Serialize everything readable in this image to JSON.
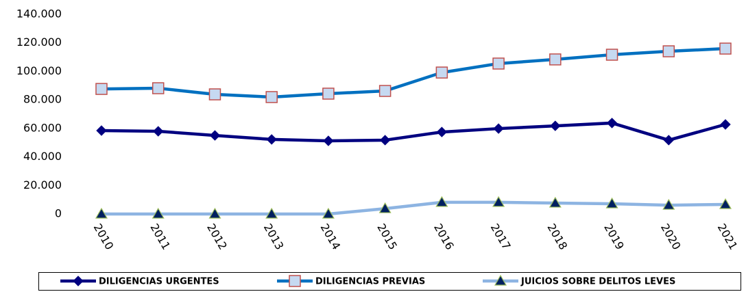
{
  "chart_data": {
    "type": "line",
    "categories": [
      "2010",
      "2011",
      "2012",
      "2013",
      "2014",
      "2015",
      "2016",
      "2017",
      "2018",
      "2019",
      "2020",
      "2021"
    ],
    "series": [
      {
        "name": "DILIGENCIAS URGENTES",
        "color": "#000080",
        "marker": "diamond",
        "marker_fill": "#000080",
        "marker_edge": "#000080",
        "values": [
          58500,
          58000,
          55100,
          52300,
          51300,
          51800,
          57500,
          59900,
          61800,
          63800,
          51800,
          62800
        ]
      },
      {
        "name": "DILIGENCIAS PREVIAS",
        "color": "#0070c0",
        "marker": "square",
        "marker_fill": "#c6d9f1",
        "marker_edge": "#c0504d",
        "values": [
          87700,
          88200,
          83900,
          82000,
          84400,
          86300,
          99200,
          105500,
          108400,
          111700,
          114100,
          116000
        ]
      },
      {
        "name": "JUICIOS SOBRE DELITOS LEVES",
        "color": "#8db4e2",
        "marker": "triangle",
        "marker_fill": "#002060",
        "marker_edge": "#9bbb59",
        "values": [
          0,
          0,
          0,
          0,
          0,
          3800,
          8200,
          8200,
          7700,
          7200,
          6200,
          6700
        ]
      }
    ],
    "ylim": [
      0,
      140000
    ],
    "yticks": [
      0,
      {
        "value": 20000,
        "label": "20.000"
      },
      {
        "value": 40000,
        "label": "40.000"
      },
      {
        "value": 60000,
        "label": "60.000"
      },
      {
        "value": 80000,
        "label": "80.000"
      },
      {
        "value": 100000,
        "label": "100.000"
      },
      {
        "value": 120000,
        "label": "120.000"
      },
      {
        "value": 140000,
        "label": "140.000"
      }
    ],
    "legend": "bottom"
  }
}
